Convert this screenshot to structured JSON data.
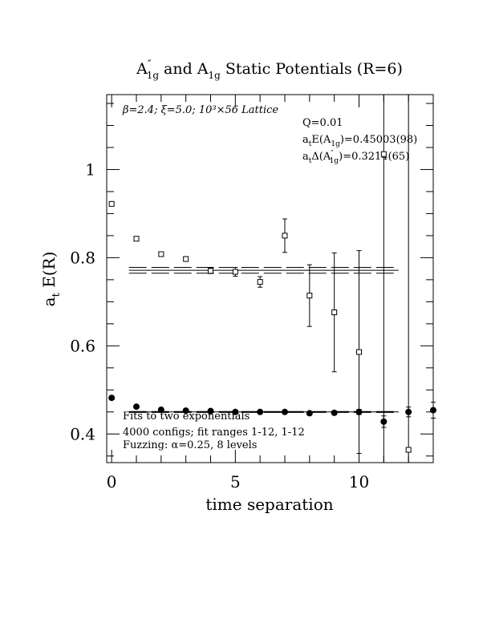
{
  "chart_data": {
    "type": "scatter",
    "title": {
      "part1": "A",
      "part1_sup": "″",
      "part1_sub": "1g",
      "mid": " and A",
      "mid_sub": "1g",
      "end": " Static Potentials (R=6)"
    },
    "xlabel": "time separation",
    "ylabel": {
      "main": "a",
      "sub": "t",
      "rest": " E(R)"
    },
    "xlim": [
      -0.2,
      13
    ],
    "ylim": [
      0.335,
      1.17
    ],
    "x_ticks": [
      0,
      5,
      10
    ],
    "x_tick_labels": [
      "0",
      "5",
      "10"
    ],
    "y_ticks": [
      0.4,
      0.6,
      0.8,
      1.0
    ],
    "y_tick_labels": [
      "0.4",
      "0.6",
      "0.8",
      "1"
    ],
    "inner_text": {
      "lattice": "β=2.4; ξ=5.0; 10³×56 Lattice",
      "fit_desc_1": "Fits to two exponentials",
      "fit_desc_2": "4000 configs; fit ranges 1-12, 1-12",
      "fit_desc_3": "Fuzzing: α=0.25, 8 levels"
    },
    "fit_info": {
      "q": "Q=0.01",
      "e_pre": "a",
      "e_pre_sub": "t",
      "e_mid": "E(A",
      "e_mid_sub": "1g",
      "e_post": ")=0.45003(98)",
      "d_pre": "a",
      "d_pre_sub": "t",
      "d_mid": "Δ(A",
      "d_mid_sup": "″",
      "d_mid_sub": "1g",
      "d_post": ")=0.3214(65)"
    },
    "series": [
      {
        "marker": "filled-circle",
        "x": [
          0,
          1,
          2,
          3,
          4,
          5,
          6,
          7,
          8,
          9,
          10,
          11,
          12,
          13
        ],
        "y": [
          0.482,
          0.462,
          0.455,
          0.453,
          0.452,
          0.45,
          0.45,
          0.45,
          0.447,
          0.448,
          0.45,
          0.428,
          0.45,
          0.454
        ],
        "err": [
          0.002,
          0.002,
          0.002,
          0.002,
          0.002,
          0.002,
          0.003,
          0.003,
          0.004,
          0.004,
          0.006,
          0.013,
          0.011,
          0.018
        ]
      },
      {
        "marker": "open-square",
        "x": [
          0,
          1,
          2,
          3,
          4,
          5,
          6,
          7,
          8,
          9,
          10,
          11,
          12
        ],
        "y": [
          0.922,
          0.843,
          0.808,
          0.797,
          0.77,
          0.768,
          0.745,
          0.85,
          0.714,
          0.676,
          0.586,
          1.035,
          0.364
        ],
        "err": [
          0.002,
          0.003,
          0.004,
          0.005,
          0.006,
          0.01,
          0.012,
          0.038,
          0.07,
          0.135,
          0.23,
          0.75,
          0.9
        ]
      }
    ],
    "fit_lines": [
      {
        "x": [
          0.7,
          11.6
        ],
        "y": 0.45,
        "style": "solid"
      },
      {
        "x": [
          0.7,
          11.6
        ],
        "y": 0.449,
        "style": "dashed"
      },
      {
        "x": [
          0.7,
          11.6
        ],
        "y": 0.451,
        "style": "dashed"
      },
      {
        "x": [
          0.7,
          11.6
        ],
        "y": 0.7714,
        "style": "solid"
      },
      {
        "x": [
          0.7,
          11.6
        ],
        "y": 0.778,
        "style": "dashed"
      },
      {
        "x": [
          0.7,
          11.6
        ],
        "y": 0.7648,
        "style": "dashed"
      }
    ],
    "grid": false,
    "legend": "none"
  }
}
